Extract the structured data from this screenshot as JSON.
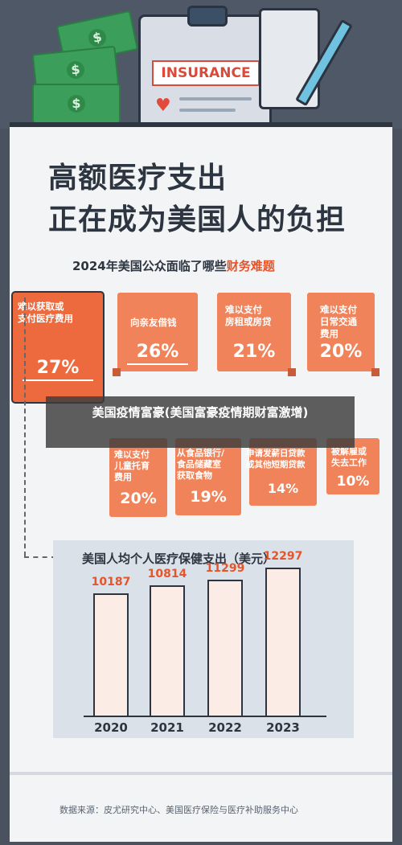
{
  "header": {
    "insurance_sign": "INSURANCE"
  },
  "title": {
    "line1": "高额医疗支出",
    "line2": "正在成为美国人的负担"
  },
  "subtitle": {
    "prefix": "2024年美国公众面临了哪些",
    "highlight": "财务难题"
  },
  "colors": {
    "accent": "#f0835a",
    "highlight": "#e4552b",
    "dark": "#2d3540",
    "money": "#3b9e5a"
  },
  "issues_row1": [
    {
      "label": "难以获取或 支付医疗费用",
      "value": "27%"
    },
    {
      "label": "向亲友借钱",
      "value": "26%"
    },
    {
      "label": "难以支付 房租或房贷",
      "value": "21%"
    },
    {
      "label": "难以支付 日常交通 费用",
      "value": "20%"
    }
  ],
  "issues_row2": [
    {
      "label": "难以支付 儿童托育 费用",
      "value": "20%"
    },
    {
      "label": "从食品银行/ 食品储藏室 获取食物",
      "value": "19%"
    },
    {
      "label": "申请发薪日贷款 或其他短期贷款",
      "value": "14%"
    },
    {
      "label": "被解雇或 失去工作",
      "value": "10%"
    }
  ],
  "banner": {
    "text": "美国疫情富豪(美国富豪疫情期财富激增)"
  },
  "chart_data": {
    "type": "bar",
    "title": "美国人均个人医疗保健支出（美元）",
    "categories": [
      "2020",
      "2021",
      "2022",
      "2023"
    ],
    "values": [
      10187,
      10814,
      11299,
      12297
    ],
    "xlabel": "",
    "ylabel": "",
    "ylim": [
      0,
      12700
    ],
    "grid": false
  },
  "source": "数据来源：皮尤研究中心、美国医疗保险与医疗补助服务中心"
}
